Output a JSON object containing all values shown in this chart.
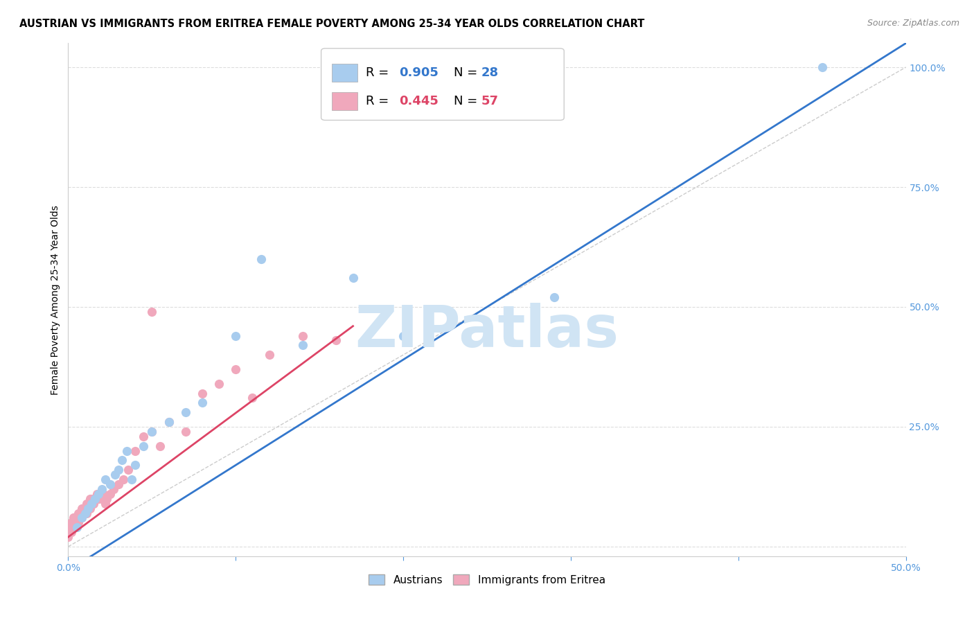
{
  "title": "AUSTRIAN VS IMMIGRANTS FROM ERITREA FEMALE POVERTY AMONG 25-34 YEAR OLDS CORRELATION CHART",
  "source": "Source: ZipAtlas.com",
  "tick_color": "#5599dd",
  "ylabel": "Female Poverty Among 25-34 Year Olds",
  "xlim": [
    0.0,
    0.5
  ],
  "ylim": [
    -0.02,
    1.05
  ],
  "xtick_positions": [
    0.0,
    0.1,
    0.2,
    0.3,
    0.4,
    0.5
  ],
  "ytick_positions": [
    0.0,
    0.25,
    0.5,
    0.75,
    1.0
  ],
  "blue_R": 0.905,
  "blue_N": 28,
  "pink_R": 0.445,
  "pink_N": 57,
  "blue_scatter_x": [
    0.005,
    0.008,
    0.01,
    0.012,
    0.014,
    0.016,
    0.018,
    0.02,
    0.022,
    0.025,
    0.028,
    0.03,
    0.032,
    0.035,
    0.038,
    0.04,
    0.045,
    0.05,
    0.06,
    0.07,
    0.08,
    0.1,
    0.115,
    0.14,
    0.17,
    0.2,
    0.29,
    0.45
  ],
  "blue_scatter_y": [
    0.04,
    0.06,
    0.07,
    0.08,
    0.09,
    0.1,
    0.11,
    0.12,
    0.14,
    0.13,
    0.15,
    0.16,
    0.18,
    0.2,
    0.14,
    0.17,
    0.21,
    0.24,
    0.26,
    0.28,
    0.3,
    0.44,
    0.6,
    0.42,
    0.56,
    0.44,
    0.52,
    1.0
  ],
  "pink_scatter_x": [
    0.0,
    0.001,
    0.001,
    0.002,
    0.002,
    0.003,
    0.003,
    0.004,
    0.004,
    0.005,
    0.005,
    0.006,
    0.006,
    0.007,
    0.007,
    0.008,
    0.008,
    0.009,
    0.009,
    0.01,
    0.01,
    0.011,
    0.011,
    0.012,
    0.012,
    0.013,
    0.013,
    0.014,
    0.014,
    0.015,
    0.016,
    0.017,
    0.018,
    0.019,
    0.02,
    0.021,
    0.022,
    0.023,
    0.025,
    0.027,
    0.03,
    0.033,
    0.036,
    0.04,
    0.045,
    0.05,
    0.055,
    0.06,
    0.07,
    0.08,
    0.09,
    0.1,
    0.11,
    0.12,
    0.14,
    0.16,
    0.05
  ],
  "pink_scatter_y": [
    0.02,
    0.03,
    0.04,
    0.03,
    0.05,
    0.04,
    0.06,
    0.04,
    0.05,
    0.05,
    0.06,
    0.05,
    0.07,
    0.06,
    0.07,
    0.06,
    0.08,
    0.07,
    0.08,
    0.07,
    0.08,
    0.09,
    0.07,
    0.08,
    0.09,
    0.08,
    0.1,
    0.09,
    0.1,
    0.09,
    0.1,
    0.11,
    0.1,
    0.11,
    0.1,
    0.11,
    0.09,
    0.1,
    0.11,
    0.12,
    0.13,
    0.14,
    0.16,
    0.2,
    0.23,
    0.24,
    0.21,
    0.26,
    0.24,
    0.32,
    0.34,
    0.37,
    0.31,
    0.4,
    0.44,
    0.43,
    0.49
  ],
  "blue_color": "#a8ccee",
  "pink_color": "#f0a8bc",
  "blue_line_color": "#3377cc",
  "pink_line_color": "#dd4466",
  "diag_line_color": "#cccccc",
  "watermark_text": "ZIPatlas",
  "watermark_color": "#d0e4f4",
  "background_color": "#ffffff",
  "grid_color": "#dddddd",
  "title_fontsize": 10.5,
  "axis_label_fontsize": 10,
  "tick_label_fontsize": 10,
  "legend_fontsize": 12,
  "blue_line_x": [
    0.0,
    0.5
  ],
  "blue_line_y": [
    -0.05,
    1.05
  ],
  "pink_line_x": [
    0.0,
    0.17
  ],
  "pink_line_y": [
    0.02,
    0.46
  ]
}
